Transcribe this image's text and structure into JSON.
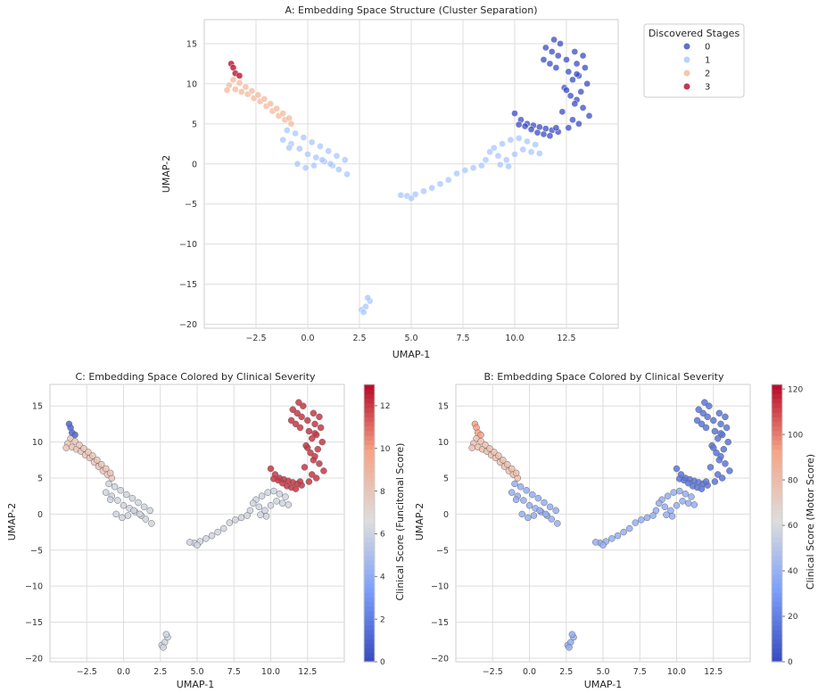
{
  "charts": [
    {
      "id": "A",
      "type": "scatter",
      "title": "A: Embedding Space Structure (Cluster Separation)",
      "xlabel": "UMAP-1",
      "ylabel": "UMAP-2",
      "xlim": [
        -5,
        15
      ],
      "ylim": [
        -20.5,
        18
      ],
      "xticks": [
        -2.5,
        0.0,
        2.5,
        5.0,
        7.5,
        10.0,
        12.5
      ],
      "yticks": [
        -20,
        -15,
        -10,
        -5,
        0,
        5,
        10,
        15
      ],
      "xtick_labels": [
        "−2.5",
        "0.0",
        "2.5",
        "5.0",
        "7.5",
        "10.0",
        "12.5"
      ],
      "ytick_labels": [
        "−20",
        "−15",
        "−10",
        "−5",
        "0",
        "5",
        "10",
        "15"
      ],
      "grid": true,
      "color_mode": "categorical",
      "legend": {
        "title": "Discovered Stages",
        "placement": "outside-top-right",
        "entries": [
          {
            "label": "0",
            "color": "#3b4cc0"
          },
          {
            "label": "1",
            "color": "#aac7fd"
          },
          {
            "label": "2",
            "color": "#f4b89c"
          },
          {
            "label": "3",
            "color": "#b40426"
          }
        ]
      }
    },
    {
      "id": "C",
      "type": "scatter",
      "title": "C: Embedding Space Colored by Clinical Severity",
      "xlabel": "UMAP-1",
      "ylabel": "UMAP-2",
      "xlim": [
        -5,
        15
      ],
      "ylim": [
        -20.5,
        18
      ],
      "xticks": [
        -2.5,
        0.0,
        2.5,
        5.0,
        7.5,
        10.0,
        12.5
      ],
      "yticks": [
        -20,
        -15,
        -10,
        -5,
        0,
        5,
        10,
        15
      ],
      "xtick_labels": [
        "−2.5",
        "0.0",
        "2.5",
        "5.0",
        "7.5",
        "10.0",
        "12.5"
      ],
      "ytick_labels": [
        "−20",
        "−15",
        "−10",
        "−5",
        "0",
        "5",
        "10",
        "15"
      ],
      "grid": true,
      "color_mode": "functional",
      "colorbar": {
        "label": "Clinical Score (Funcitonal Score)",
        "min": 0,
        "max": 13,
        "ticks": [
          0,
          2,
          4,
          6,
          8,
          10,
          12
        ]
      }
    },
    {
      "id": "B",
      "type": "scatter",
      "title": "B: Embedding Space Colored by Clinical Severity",
      "xlabel": "UMAP-1",
      "ylabel": "UMAP-2",
      "xlim": [
        -5,
        15
      ],
      "ylim": [
        -20.5,
        18
      ],
      "xticks": [
        -2.5,
        0.0,
        2.5,
        5.0,
        7.5,
        10.0,
        12.5
      ],
      "yticks": [
        -20,
        -15,
        -10,
        -5,
        0,
        5,
        10,
        15
      ],
      "xtick_labels": [
        "−2.5",
        "0.0",
        "2.5",
        "5.0",
        "7.5",
        "10.0",
        "12.5"
      ],
      "ytick_labels": [
        "−20",
        "−15",
        "−10",
        "−5",
        "0",
        "5",
        "10",
        "15"
      ],
      "grid": true,
      "color_mode": "motor",
      "colorbar": {
        "label": "Clinical Score (Motor Score)",
        "min": 0,
        "max": 122,
        "ticks": [
          0,
          20,
          40,
          60,
          80,
          100,
          120
        ]
      }
    }
  ],
  "chart_data": {
    "type": "scatter",
    "colormap": "coolwarm",
    "stage_colors": [
      "#3b4cc0",
      "#aac7fd",
      "#f4b89c",
      "#b40426"
    ],
    "clusters": [
      {
        "stage": 0,
        "region": "upper-right blob",
        "x": [
          12.9,
          13.3,
          12.5,
          13.0,
          13.4,
          12.6,
          13.1,
          12.8,
          13.5,
          12.4,
          13.2,
          12.7,
          13.0,
          12.9,
          13.3,
          12.3,
          13.6,
          12.8,
          13.1,
          12.6,
          11.9,
          12.2,
          11.5,
          11.8,
          12.1,
          11.4,
          11.7,
          12.0,
          13.0,
          12.5
        ],
        "y": [
          14,
          13.5,
          13,
          12.5,
          12,
          11.5,
          11,
          10.5,
          10,
          9.5,
          9,
          8.5,
          8,
          7.5,
          7,
          6.5,
          6,
          5.5,
          5,
          4.5,
          15.5,
          15,
          14.5,
          14,
          13.5,
          13,
          12.5,
          12,
          11.2,
          9.2
        ]
      },
      {
        "stage": 0,
        "region": "arm toward stage 1",
        "x": [
          10.0,
          10.3,
          10.6,
          10.9,
          11.2,
          11.5,
          11.8,
          12.1,
          10.2,
          10.5,
          10.8,
          11.1,
          11.4,
          11.7,
          12.0
        ],
        "y": [
          6.3,
          5.5,
          5.0,
          4.8,
          4.6,
          4.4,
          4.2,
          4.0,
          4.9,
          4.7,
          4.3,
          3.9,
          3.7,
          3.5,
          4.5
        ]
      },
      {
        "stage": 1,
        "region": "right arm and bridge",
        "x": [
          9.0,
          9.4,
          9.8,
          10.2,
          10.6,
          11.0,
          8.8,
          9.2,
          9.6,
          10.0,
          10.4,
          10.8,
          11.2,
          8.6,
          9.3,
          9.7,
          8.0,
          7.6,
          7.2,
          8.4,
          6.8,
          6.4,
          6.0,
          5.6,
          5.2,
          4.8,
          4.5,
          5.0
        ],
        "y": [
          2.0,
          2.5,
          3.0,
          3.2,
          2.8,
          2.4,
          1.5,
          1.0,
          0.5,
          1.2,
          1.8,
          1.5,
          1.3,
          0.5,
          -0.1,
          -0.3,
          -0.5,
          -0.8,
          -1.2,
          -0.2,
          -2.0,
          -2.5,
          -3.0,
          -3.4,
          -3.8,
          -4.0,
          -3.9,
          -4.3
        ]
      },
      {
        "stage": 1,
        "region": "left diagonal",
        "x": [
          -1.0,
          -0.6,
          -0.2,
          0.2,
          0.6,
          1.0,
          1.4,
          1.8,
          -0.8,
          -0.4,
          0.0,
          0.4,
          0.8,
          1.2,
          -1.2,
          -0.9,
          -0.5,
          -0.1,
          0.3,
          0.7,
          1.1,
          1.5,
          1.9
        ],
        "y": [
          4.2,
          3.8,
          3.3,
          2.7,
          2.2,
          1.6,
          1.0,
          0.5,
          2.5,
          1.9,
          1.2,
          0.8,
          0.3,
          -0.2,
          3.0,
          2.0,
          0.0,
          -0.5,
          -0.2,
          0.5,
          0.0,
          -0.7,
          -1.3
        ]
      },
      {
        "stage": 1,
        "region": "bottom outlier",
        "x": [
          2.6,
          2.8,
          3.0,
          2.7,
          2.9
        ],
        "y": [
          -18.2,
          -17.8,
          -17.1,
          -18.5,
          -16.7
        ]
      },
      {
        "stage": 2,
        "region": "upper-left band",
        "x": [
          -3.8,
          -3.5,
          -3.2,
          -2.9,
          -2.6,
          -2.3,
          -2.0,
          -1.7,
          -1.4,
          -1.1,
          -0.8,
          -3.6,
          -3.3,
          -3.0,
          -2.7,
          -2.4,
          -2.1,
          -1.8,
          -1.5,
          -1.2,
          -0.9,
          -3.9
        ],
        "y": [
          9.8,
          9.3,
          9.0,
          8.7,
          8.2,
          7.8,
          7.2,
          6.6,
          6.0,
          5.5,
          5.0,
          10.5,
          10.1,
          9.6,
          9.1,
          8.6,
          8.1,
          7.5,
          6.9,
          6.3,
          5.7,
          9.2
        ]
      },
      {
        "stage": 3,
        "region": "top-left tip",
        "x": [
          -3.7,
          -3.6,
          -3.5,
          -3.3
        ],
        "y": [
          12.5,
          12.0,
          11.3,
          11.0
        ]
      }
    ],
    "color_scales": {
      "functional": {
        "min": 0,
        "max": 13,
        "by_stage": {
          "0": 12,
          "1": 6,
          "2": 8,
          "3": 1
        }
      },
      "motor": {
        "min": 0,
        "max": 122,
        "by_stage": {
          "0": 15,
          "1": 38,
          "2": 78,
          "3": 92
        }
      }
    }
  }
}
